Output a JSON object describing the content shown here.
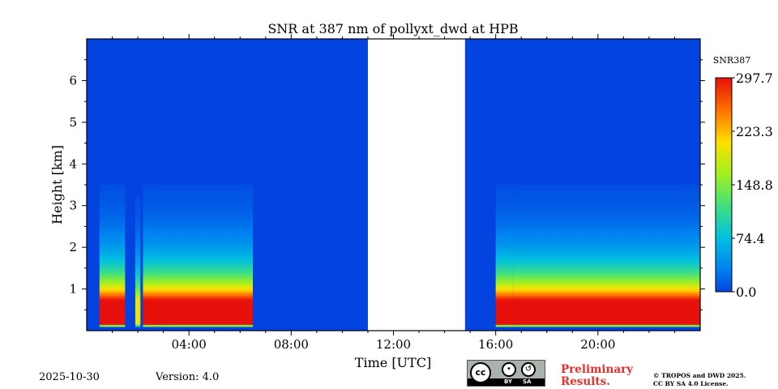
{
  "chart_data": {
    "type": "heatmap",
    "title": "SNR at 387 nm of pollyxt_dwd at HPB",
    "xlabel": "Time [UTC]",
    "ylabel": "Height [km]",
    "xlim_hours": [
      0,
      24
    ],
    "ylim_km": [
      0,
      7
    ],
    "x_ticks": [
      {
        "hour": 4,
        "label": "04:00"
      },
      {
        "hour": 8,
        "label": "08:00"
      },
      {
        "hour": 12,
        "label": "12:00"
      },
      {
        "hour": 16,
        "label": "16:00"
      },
      {
        "hour": 20,
        "label": "20:00"
      }
    ],
    "y_ticks": [
      {
        "km": 1,
        "label": "1"
      },
      {
        "km": 2,
        "label": "2"
      },
      {
        "km": 3,
        "label": "3"
      },
      {
        "km": 4,
        "label": "4"
      },
      {
        "km": 5,
        "label": "5"
      },
      {
        "km": 6,
        "label": "6"
      }
    ],
    "no_data_gap_hours": [
      11.0,
      14.8
    ],
    "colorbar": {
      "label": "SNR387",
      "range": [
        0.0,
        297.7
      ],
      "tick_labels": [
        "297.7",
        "223.3",
        "148.8",
        "74.4",
        "0.0"
      ],
      "tick_values": [
        297.7,
        223.3,
        148.8,
        74.4,
        0.0
      ]
    },
    "profile": {
      "surface_km": 0.1,
      "peak_base_km": 0.15,
      "peak_top_km": 0.72,
      "decay_start_km": 0.75,
      "decay_scale_km": 0.7,
      "units": "SNR"
    },
    "segments_hours": [
      {
        "start": 0.5,
        "end": 1.5,
        "peak_snr": 297.7
      },
      {
        "start": 1.5,
        "end": 1.9,
        "peak_snr": 0.0
      },
      {
        "start": 1.9,
        "end": 2.1,
        "peak_snr": 200.0
      },
      {
        "start": 2.2,
        "end": 6.5,
        "peak_snr": 297.7
      },
      {
        "start": 16.0,
        "end": 16.7,
        "peak_snr": 297.7
      },
      {
        "start": 16.7,
        "end": 24.0,
        "peak_snr": 297.7
      }
    ]
  },
  "footer": {
    "date": "2025-10-30",
    "version": "Version: 4.0",
    "preliminary_line1": "Preliminary",
    "preliminary_line2": "Results.",
    "copyright_line1": "© TROPOS and DWD 2025.",
    "copyright_line2": "CC BY SA 4.0 License.",
    "license_badge": {
      "cc": "cc",
      "by": "BY",
      "sa": "SA"
    }
  },
  "colors": {
    "background_low": "#0343df",
    "no_data": "#ffffff"
  }
}
